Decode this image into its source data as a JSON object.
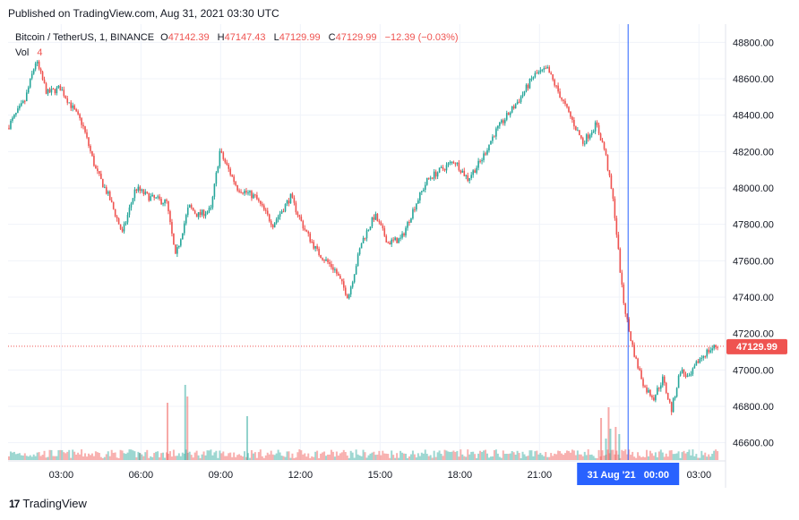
{
  "published": "Published on TradingView.com, Aug 31, 2021 03:30 UTC",
  "legend": {
    "symbol": "Bitcoin / TetherUS, 1, BINANCE",
    "o_label": "O",
    "o": "47142.39",
    "h_label": "H",
    "h": "47147.43",
    "l_label": "L",
    "l": "47129.99",
    "c_label": "C",
    "c": "47129.99",
    "change": "−12.39 (−0.03%)",
    "vol_label": "Vol",
    "vol": "4"
  },
  "price_tag": "47129.99",
  "date_tag": "31 Aug '21   00:00",
  "footer": {
    "brand": "TradingView",
    "logo": "17"
  },
  "colors": {
    "up": "#26a69a",
    "down": "#ef5350",
    "grid": "#f0f3fa",
    "axis_text": "#131722",
    "crosshair": "#2962ff",
    "accent": "#2962ff"
  },
  "chart_data": {
    "type": "candlestick",
    "title": "Bitcoin / TetherUS, 1, BINANCE",
    "ylim": [
      46500,
      48900
    ],
    "y_ticks": [
      "48800.00",
      "48600.00",
      "48400.00",
      "48200.00",
      "48000.00",
      "47800.00",
      "47600.00",
      "47400.00",
      "47200.00",
      "47000.00",
      "46800.00",
      "46600.00"
    ],
    "y_tick_values": [
      48800,
      48600,
      48400,
      48200,
      48000,
      47800,
      47600,
      47400,
      47200,
      47000,
      46800,
      46600
    ],
    "x_ticks": [
      "03:00",
      "06:00",
      "09:00",
      "12:00",
      "15:00",
      "18:00",
      "21:00",
      "00:00",
      "03:00"
    ],
    "x_tick_minutes": [
      60,
      240,
      420,
      600,
      780,
      960,
      1140,
      1320,
      1500
    ],
    "x_range_minutes": [
      -60,
      1560
    ],
    "last_price": 47129.99,
    "crosshair_minute": 1340,
    "price_path": [
      [
        -60,
        48330
      ],
      [
        -20,
        48480
      ],
      [
        5,
        48700
      ],
      [
        30,
        48520
      ],
      [
        60,
        48550
      ],
      [
        110,
        48350
      ],
      [
        140,
        48100
      ],
      [
        170,
        47950
      ],
      [
        200,
        47750
      ],
      [
        230,
        48000
      ],
      [
        260,
        47950
      ],
      [
        300,
        47920
      ],
      [
        320,
        47620
      ],
      [
        350,
        47900
      ],
      [
        370,
        47850
      ],
      [
        400,
        47880
      ],
      [
        420,
        48200
      ],
      [
        460,
        48000
      ],
      [
        500,
        47950
      ],
      [
        540,
        47800
      ],
      [
        580,
        47950
      ],
      [
        610,
        47780
      ],
      [
        640,
        47650
      ],
      [
        680,
        47550
      ],
      [
        710,
        47400
      ],
      [
        740,
        47700
      ],
      [
        770,
        47850
      ],
      [
        800,
        47700
      ],
      [
        830,
        47720
      ],
      [
        860,
        47900
      ],
      [
        890,
        48050
      ],
      [
        920,
        48100
      ],
      [
        950,
        48150
      ],
      [
        980,
        48050
      ],
      [
        1010,
        48150
      ],
      [
        1040,
        48300
      ],
      [
        1070,
        48400
      ],
      [
        1100,
        48500
      ],
      [
        1130,
        48620
      ],
      [
        1160,
        48650
      ],
      [
        1190,
        48500
      ],
      [
        1210,
        48400
      ],
      [
        1240,
        48250
      ],
      [
        1270,
        48350
      ],
      [
        1290,
        48200
      ],
      [
        1310,
        47900
      ],
      [
        1330,
        47400
      ],
      [
        1345,
        47200
      ],
      [
        1360,
        47050
      ],
      [
        1380,
        46900
      ],
      [
        1400,
        46850
      ],
      [
        1420,
        46950
      ],
      [
        1440,
        46780
      ],
      [
        1460,
        47000
      ],
      [
        1480,
        46950
      ],
      [
        1500,
        47050
      ],
      [
        1520,
        47100
      ],
      [
        1540,
        47130
      ]
    ],
    "volume_spikes": [
      [
        237,
        9
      ],
      [
        300,
        65
      ],
      [
        340,
        85
      ],
      [
        345,
        72
      ],
      [
        480,
        50
      ],
      [
        1279,
        48
      ],
      [
        1290,
        25
      ],
      [
        1296,
        60
      ],
      [
        1300,
        36
      ],
      [
        1312,
        38
      ],
      [
        1320,
        30
      ]
    ]
  }
}
